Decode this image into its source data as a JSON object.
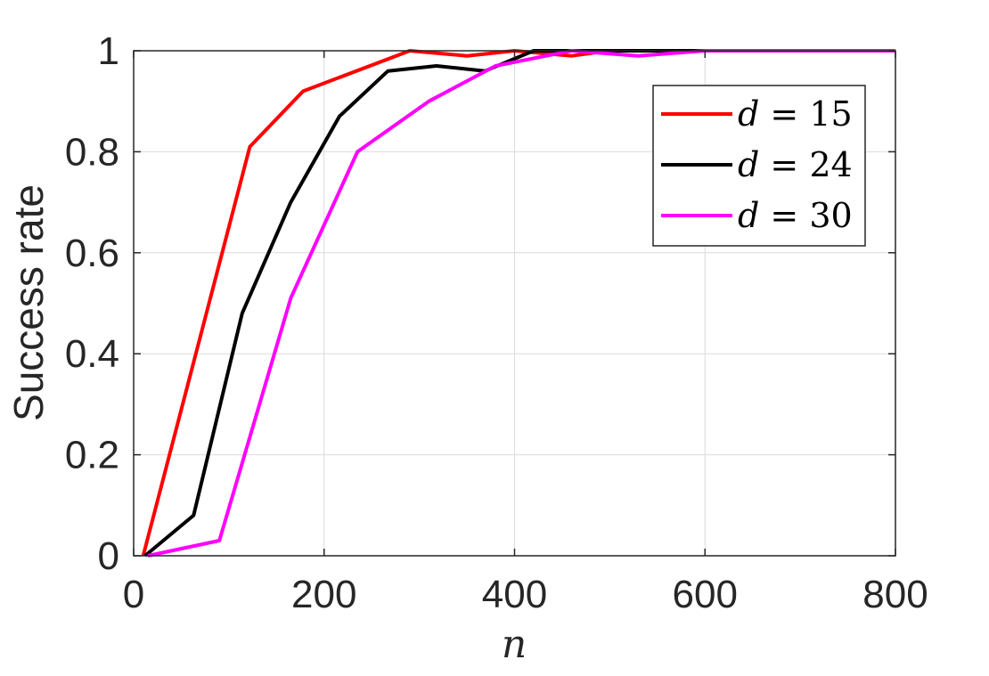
{
  "chart_data": {
    "type": "line",
    "xlabel": "n",
    "ylabel": "Success rate",
    "xlim": [
      0,
      800
    ],
    "ylim": [
      0,
      1
    ],
    "grid": true,
    "legend_position": "top-right",
    "x_ticks": [
      "0",
      "200",
      "400",
      "600",
      "800"
    ],
    "y_ticks": [
      "0",
      "0.2",
      "0.4",
      "0.6",
      "0.8",
      "1"
    ],
    "series": [
      {
        "name": "d = 15",
        "var": "d",
        "val": "15",
        "color": "#ff0000",
        "x": [
          10,
          122,
          178,
          290,
          350,
          400,
          460,
          500,
          600,
          800
        ],
        "y": [
          0,
          0.81,
          0.92,
          1.0,
          0.99,
          1.0,
          0.99,
          1.0,
          1.0,
          1.0
        ]
      },
      {
        "name": "d = 24",
        "var": "d",
        "val": "24",
        "color": "#000000",
        "x": [
          12,
          63,
          114,
          165,
          216,
          267,
          318,
          369,
          420,
          800
        ],
        "y": [
          0,
          0.08,
          0.48,
          0.7,
          0.87,
          0.96,
          0.97,
          0.96,
          1.0,
          1.0
        ]
      },
      {
        "name": "d = 30",
        "var": "d",
        "val": "30",
        "color": "#ff00ff",
        "x": [
          15,
          90,
          165,
          235,
          310,
          380,
          460,
          530,
          600,
          800
        ],
        "y": [
          0,
          0.03,
          0.51,
          0.8,
          0.9,
          0.97,
          1.0,
          0.99,
          1.0,
          1.0
        ]
      }
    ]
  }
}
